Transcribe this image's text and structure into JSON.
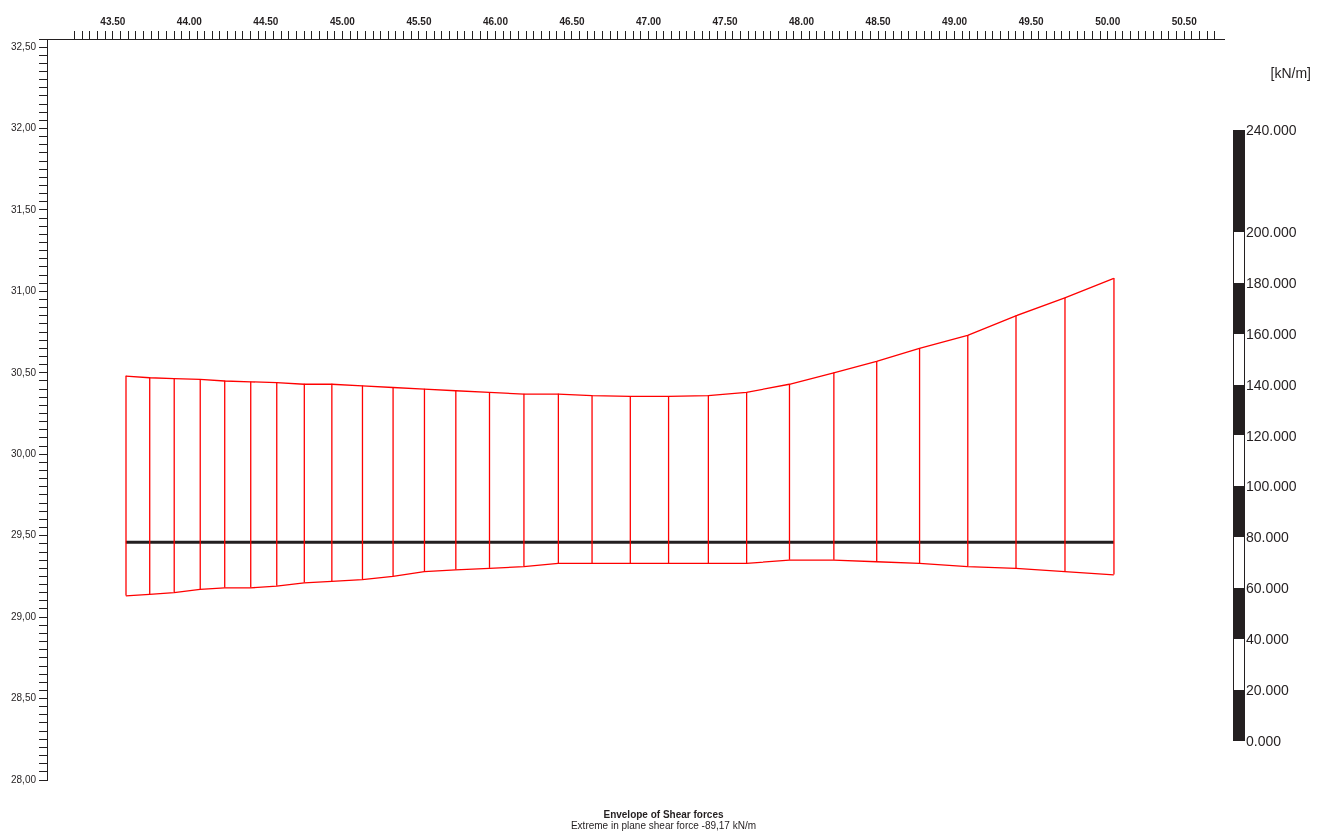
{
  "chart_data": {
    "type": "line",
    "title": "Envelope of Shear forces",
    "subtitle": "Extreme in plane shear force -89,17 kN/m",
    "clabel": "[kN/m]",
    "annotations": [
      "0.000",
      "20.000",
      "40.000",
      "60.000",
      "80.000",
      "100.000",
      "120.000",
      "140.000",
      "160.000",
      "180.000",
      "200.000",
      "240.000"
    ],
    "x": [
      43.585,
      43.74,
      43.9,
      44.07,
      44.23,
      44.4,
      44.57,
      44.75,
      44.93,
      45.13,
      45.33,
      45.535,
      45.74,
      45.96,
      46.185,
      46.41,
      46.63,
      46.88,
      47.13,
      47.39,
      47.64,
      47.92,
      48.21,
      48.49,
      48.77,
      49.085,
      49.4,
      49.72,
      50.04
    ],
    "series": [
      {
        "color": "#ff0000",
        "values": [
          30.48,
          30.47,
          30.465,
          30.46,
          30.45,
          30.445,
          30.44,
          30.43,
          30.43,
          30.42,
          30.41,
          30.4,
          30.39,
          30.38,
          30.37,
          30.37,
          30.36,
          30.355,
          30.355,
          30.36,
          30.38,
          30.43,
          30.5,
          30.57,
          30.65,
          30.73,
          30.85,
          30.96,
          31.08
        ]
      },
      {
        "color": "#ff0000",
        "values": [
          29.13,
          29.14,
          29.15,
          29.17,
          29.18,
          29.18,
          29.19,
          29.21,
          29.22,
          29.23,
          29.25,
          29.28,
          29.29,
          29.3,
          29.31,
          29.33,
          29.33,
          29.33,
          29.33,
          29.33,
          29.33,
          29.35,
          29.35,
          29.34,
          29.33,
          29.31,
          29.3,
          29.28,
          29.26
        ]
      },
      {
        "color": "#231f20",
        "x": [
          43.585,
          50.04
        ],
        "values": [
          29.46,
          29.46
        ]
      }
    ],
    "xlim": [
      43.07,
      50.76
    ],
    "ylim": [
      28,
      32.55
    ],
    "grid": false,
    "legend": false,
    "marker": "none",
    "line_style": "solid",
    "xticks": [
      {
        "value": 43.25,
        "label": null
      },
      {
        "value": 43.3,
        "label": null
      },
      {
        "value": 43.35,
        "label": null
      },
      {
        "value": 43.4,
        "label": null
      },
      {
        "value": 43.45,
        "label": null
      },
      {
        "value": 43.5,
        "label": "43.50"
      },
      {
        "value": 43.55,
        "label": null
      },
      {
        "value": 43.6,
        "label": null
      },
      {
        "value": 43.65,
        "label": null
      },
      {
        "value": 43.7,
        "label": null
      },
      {
        "value": 43.75,
        "label": null
      },
      {
        "value": 43.8,
        "label": null
      },
      {
        "value": 43.85,
        "label": null
      },
      {
        "value": 43.9,
        "label": null
      },
      {
        "value": 43.95,
        "label": null
      },
      {
        "value": 44,
        "label": "44.00"
      },
      {
        "value": 44.05,
        "label": null
      },
      {
        "value": 44.1,
        "label": null
      },
      {
        "value": 44.15,
        "label": null
      },
      {
        "value": 44.2,
        "label": null
      },
      {
        "value": 44.25,
        "label": null
      },
      {
        "value": 44.3,
        "label": null
      },
      {
        "value": 44.35,
        "label": null
      },
      {
        "value": 44.4,
        "label": null
      },
      {
        "value": 44.45,
        "label": null
      },
      {
        "value": 44.5,
        "label": "44.50"
      },
      {
        "value": 44.55,
        "label": null
      },
      {
        "value": 44.6,
        "label": null
      },
      {
        "value": 44.65,
        "label": null
      },
      {
        "value": 44.7,
        "label": null
      },
      {
        "value": 44.75,
        "label": null
      },
      {
        "value": 44.8,
        "label": null
      },
      {
        "value": 44.85,
        "label": null
      },
      {
        "value": 44.9,
        "label": null
      },
      {
        "value": 44.95,
        "label": null
      },
      {
        "value": 45,
        "label": "45.00"
      },
      {
        "value": 45.05,
        "label": null
      },
      {
        "value": 45.1,
        "label": null
      },
      {
        "value": 45.15,
        "label": null
      },
      {
        "value": 45.2,
        "label": null
      },
      {
        "value": 45.25,
        "label": null
      },
      {
        "value": 45.3,
        "label": null
      },
      {
        "value": 45.35,
        "label": null
      },
      {
        "value": 45.4,
        "label": null
      },
      {
        "value": 45.45,
        "label": null
      },
      {
        "value": 45.5,
        "label": "45.50"
      },
      {
        "value": 45.55,
        "label": null
      },
      {
        "value": 45.6,
        "label": null
      },
      {
        "value": 45.65,
        "label": null
      },
      {
        "value": 45.7,
        "label": null
      },
      {
        "value": 45.75,
        "label": null
      },
      {
        "value": 45.8,
        "label": null
      },
      {
        "value": 45.85,
        "label": null
      },
      {
        "value": 45.9,
        "label": null
      },
      {
        "value": 45.95,
        "label": null
      },
      {
        "value": 46,
        "label": "46.00"
      },
      {
        "value": 46.05,
        "label": null
      },
      {
        "value": 46.1,
        "label": null
      },
      {
        "value": 46.15,
        "label": null
      },
      {
        "value": 46.2,
        "label": null
      },
      {
        "value": 46.25,
        "label": null
      },
      {
        "value": 46.3,
        "label": null
      },
      {
        "value": 46.35,
        "label": null
      },
      {
        "value": 46.4,
        "label": null
      },
      {
        "value": 46.45,
        "label": null
      },
      {
        "value": 46.5,
        "label": "46.50"
      },
      {
        "value": 46.55,
        "label": null
      },
      {
        "value": 46.6,
        "label": null
      },
      {
        "value": 46.65,
        "label": null
      },
      {
        "value": 46.7,
        "label": null
      },
      {
        "value": 46.75,
        "label": null
      },
      {
        "value": 46.8,
        "label": null
      },
      {
        "value": 46.85,
        "label": null
      },
      {
        "value": 46.9,
        "label": null
      },
      {
        "value": 46.95,
        "label": null
      },
      {
        "value": 47,
        "label": "47.00"
      },
      {
        "value": 47.05,
        "label": null
      },
      {
        "value": 47.1,
        "label": null
      },
      {
        "value": 47.15,
        "label": null
      },
      {
        "value": 47.2,
        "label": null
      },
      {
        "value": 47.25,
        "label": null
      },
      {
        "value": 47.3,
        "label": null
      },
      {
        "value": 47.35,
        "label": null
      },
      {
        "value": 47.4,
        "label": null
      },
      {
        "value": 47.45,
        "label": null
      },
      {
        "value": 47.5,
        "label": "47.50"
      },
      {
        "value": 47.55,
        "label": null
      },
      {
        "value": 47.6,
        "label": null
      },
      {
        "value": 47.65,
        "label": null
      },
      {
        "value": 47.7,
        "label": null
      },
      {
        "value": 47.75,
        "label": null
      },
      {
        "value": 47.8,
        "label": null
      },
      {
        "value": 47.85,
        "label": null
      },
      {
        "value": 47.9,
        "label": null
      },
      {
        "value": 47.95,
        "label": null
      },
      {
        "value": 48,
        "label": "48.00"
      },
      {
        "value": 48.05,
        "label": null
      },
      {
        "value": 48.1,
        "label": null
      },
      {
        "value": 48.15,
        "label": null
      },
      {
        "value": 48.2,
        "label": null
      },
      {
        "value": 48.25,
        "label": null
      },
      {
        "value": 48.3,
        "label": null
      },
      {
        "value": 48.35,
        "label": null
      },
      {
        "value": 48.4,
        "label": null
      },
      {
        "value": 48.45,
        "label": null
      },
      {
        "value": 48.5,
        "label": "48.50"
      },
      {
        "value": 48.55,
        "label": null
      },
      {
        "value": 48.6,
        "label": null
      },
      {
        "value": 48.65,
        "label": null
      },
      {
        "value": 48.7,
        "label": null
      },
      {
        "value": 48.75,
        "label": null
      },
      {
        "value": 48.8,
        "label": null
      },
      {
        "value": 48.85,
        "label": null
      },
      {
        "value": 48.9,
        "label": null
      },
      {
        "value": 48.95,
        "label": null
      },
      {
        "value": 49,
        "label": "49.00"
      },
      {
        "value": 49.05,
        "label": null
      },
      {
        "value": 49.1,
        "label": null
      },
      {
        "value": 49.15,
        "label": null
      },
      {
        "value": 49.2,
        "label": null
      },
      {
        "value": 49.25,
        "label": null
      },
      {
        "value": 49.3,
        "label": null
      },
      {
        "value": 49.35,
        "label": null
      },
      {
        "value": 49.4,
        "label": null
      },
      {
        "value": 49.45,
        "label": null
      },
      {
        "value": 49.5,
        "label": "49.50"
      },
      {
        "value": 49.55,
        "label": null
      },
      {
        "value": 49.6,
        "label": null
      },
      {
        "value": 49.65,
        "label": null
      },
      {
        "value": 49.7,
        "label": null
      },
      {
        "value": 49.75,
        "label": null
      },
      {
        "value": 49.8,
        "label": null
      },
      {
        "value": 49.85,
        "label": null
      },
      {
        "value": 49.9,
        "label": null
      },
      {
        "value": 49.95,
        "label": null
      },
      {
        "value": 50,
        "label": "50.00"
      },
      {
        "value": 50.05,
        "label": null
      },
      {
        "value": 50.1,
        "label": null
      },
      {
        "value": 50.15,
        "label": null
      },
      {
        "value": 50.2,
        "label": null
      },
      {
        "value": 50.25,
        "label": null
      },
      {
        "value": 50.3,
        "label": null
      },
      {
        "value": 50.35,
        "label": null
      },
      {
        "value": 50.4,
        "label": null
      },
      {
        "value": 50.45,
        "label": null
      },
      {
        "value": 50.5,
        "label": "50.50"
      },
      {
        "value": 50.55,
        "label": null
      },
      {
        "value": 50.6,
        "label": null
      },
      {
        "value": 50.65,
        "label": null
      },
      {
        "value": 50.7,
        "label": null
      }
    ],
    "yticks": [
      {
        "value": 28,
        "label": "28,00"
      },
      {
        "value": 28.05,
        "label": null
      },
      {
        "value": 28.1,
        "label": null
      },
      {
        "value": 28.15,
        "label": null
      },
      {
        "value": 28.2,
        "label": null
      },
      {
        "value": 28.25,
        "label": null
      },
      {
        "value": 28.3,
        "label": null
      },
      {
        "value": 28.35,
        "label": null
      },
      {
        "value": 28.4,
        "label": null
      },
      {
        "value": 28.45,
        "label": null
      },
      {
        "value": 28.5,
        "label": "28,50"
      },
      {
        "value": 28.55,
        "label": null
      },
      {
        "value": 28.6,
        "label": null
      },
      {
        "value": 28.65,
        "label": null
      },
      {
        "value": 28.7,
        "label": null
      },
      {
        "value": 28.75,
        "label": null
      },
      {
        "value": 28.8,
        "label": null
      },
      {
        "value": 28.85,
        "label": null
      },
      {
        "value": 28.9,
        "label": null
      },
      {
        "value": 28.95,
        "label": null
      },
      {
        "value": 29,
        "label": "29,00"
      },
      {
        "value": 29.05,
        "label": null
      },
      {
        "value": 29.1,
        "label": null
      },
      {
        "value": 29.15,
        "label": null
      },
      {
        "value": 29.2,
        "label": null
      },
      {
        "value": 29.25,
        "label": null
      },
      {
        "value": 29.3,
        "label": null
      },
      {
        "value": 29.35,
        "label": null
      },
      {
        "value": 29.4,
        "label": null
      },
      {
        "value": 29.45,
        "label": null
      },
      {
        "value": 29.5,
        "label": "29,50"
      },
      {
        "value": 29.55,
        "label": null
      },
      {
        "value": 29.6,
        "label": null
      },
      {
        "value": 29.65,
        "label": null
      },
      {
        "value": 29.7,
        "label": null
      },
      {
        "value": 29.75,
        "label": null
      },
      {
        "value": 29.8,
        "label": null
      },
      {
        "value": 29.85,
        "label": null
      },
      {
        "value": 29.9,
        "label": null
      },
      {
        "value": 29.95,
        "label": null
      },
      {
        "value": 30,
        "label": "30,00"
      },
      {
        "value": 30.05,
        "label": null
      },
      {
        "value": 30.1,
        "label": null
      },
      {
        "value": 30.15,
        "label": null
      },
      {
        "value": 30.2,
        "label": null
      },
      {
        "value": 30.25,
        "label": null
      },
      {
        "value": 30.3,
        "label": null
      },
      {
        "value": 30.35,
        "label": null
      },
      {
        "value": 30.4,
        "label": null
      },
      {
        "value": 30.45,
        "label": null
      },
      {
        "value": 30.5,
        "label": "30,50"
      },
      {
        "value": 30.55,
        "label": null
      },
      {
        "value": 30.6,
        "label": null
      },
      {
        "value": 30.65,
        "label": null
      },
      {
        "value": 30.7,
        "label": null
      },
      {
        "value": 30.75,
        "label": null
      },
      {
        "value": 30.8,
        "label": null
      },
      {
        "value": 30.85,
        "label": null
      },
      {
        "value": 30.9,
        "label": null
      },
      {
        "value": 30.95,
        "label": null
      },
      {
        "value": 31,
        "label": "31,00"
      },
      {
        "value": 31.05,
        "label": null
      },
      {
        "value": 31.1,
        "label": null
      },
      {
        "value": 31.15,
        "label": null
      },
      {
        "value": 31.2,
        "label": null
      },
      {
        "value": 31.25,
        "label": null
      },
      {
        "value": 31.3,
        "label": null
      },
      {
        "value": 31.35,
        "label": null
      },
      {
        "value": 31.4,
        "label": null
      },
      {
        "value": 31.45,
        "label": null
      },
      {
        "value": 31.5,
        "label": "31,50"
      },
      {
        "value": 31.55,
        "label": null
      },
      {
        "value": 31.6,
        "label": null
      },
      {
        "value": 31.65,
        "label": null
      },
      {
        "value": 31.7,
        "label": null
      },
      {
        "value": 31.75,
        "label": null
      },
      {
        "value": 31.8,
        "label": null
      },
      {
        "value": 31.85,
        "label": null
      },
      {
        "value": 31.9,
        "label": null
      },
      {
        "value": 31.95,
        "label": null
      },
      {
        "value": 32,
        "label": "32,00"
      },
      {
        "value": 32.05,
        "label": null
      },
      {
        "value": 32.1,
        "label": null
      },
      {
        "value": 32.15,
        "label": null
      },
      {
        "value": 32.2,
        "label": null
      },
      {
        "value": 32.25,
        "label": null
      },
      {
        "value": 32.3,
        "label": null
      },
      {
        "value": 32.35,
        "label": null
      },
      {
        "value": 32.4,
        "label": null
      },
      {
        "value": 32.45,
        "label": null
      },
      {
        "value": 32.5,
        "label": "32,50"
      },
      {
        "value": 32.55,
        "label": null
      }
    ]
  }
}
